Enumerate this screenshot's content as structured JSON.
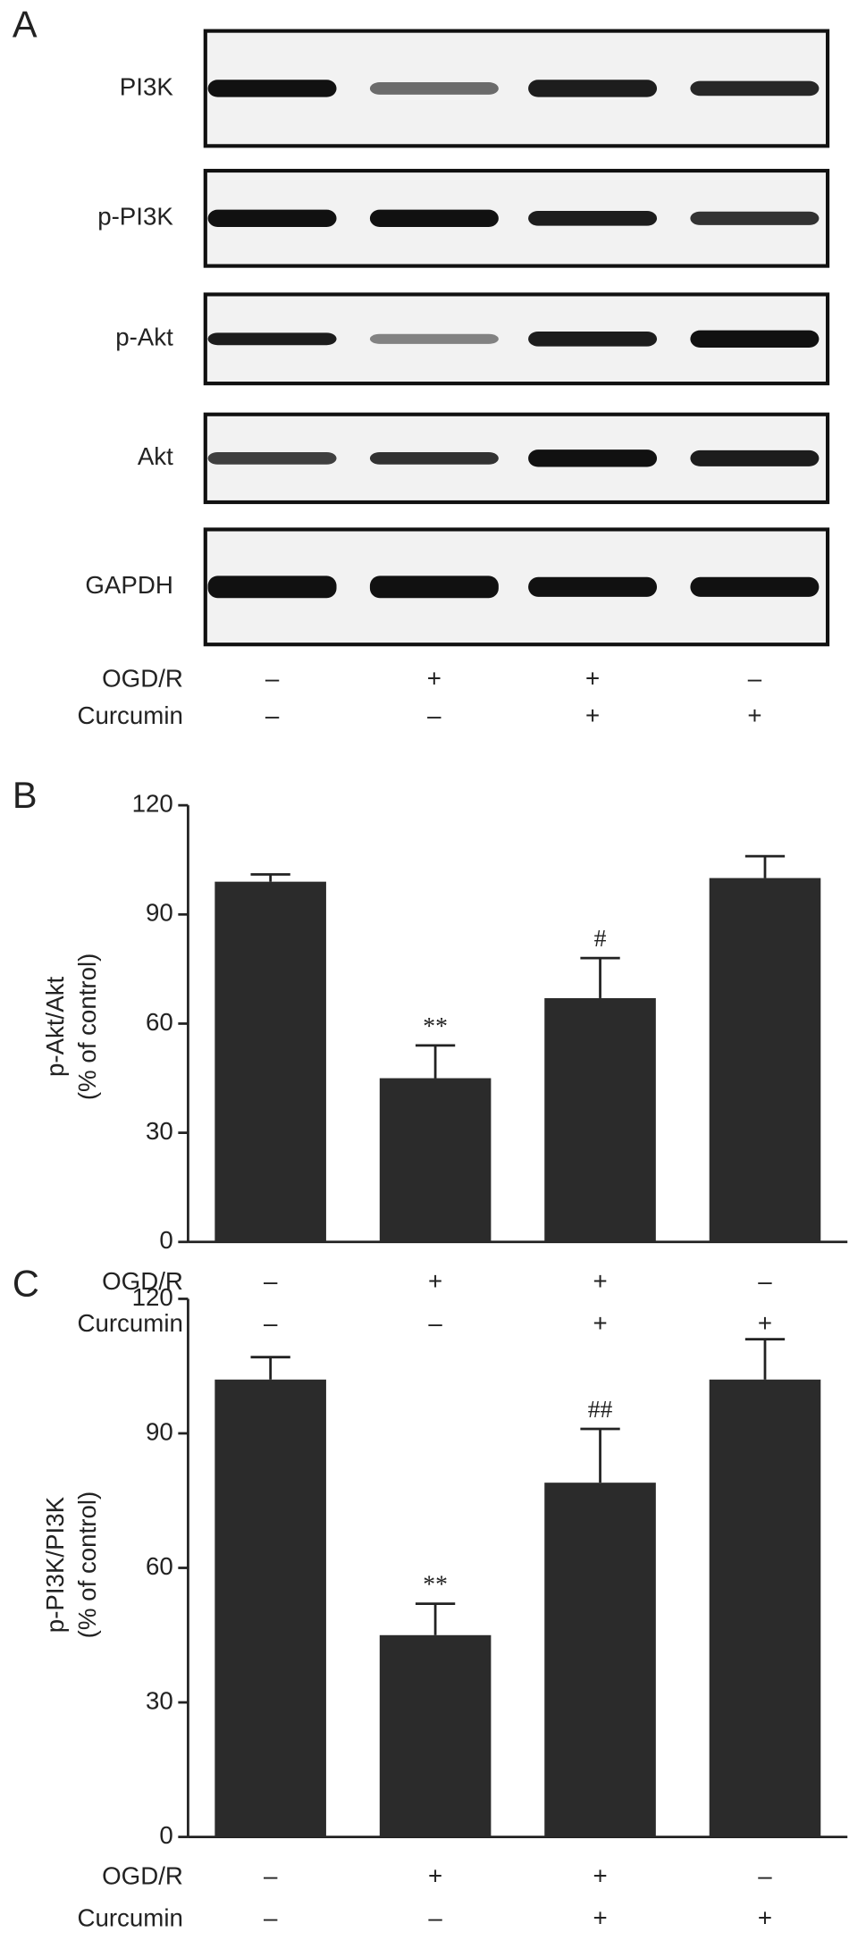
{
  "blot": {
    "panel_label": "A",
    "rows": [
      "PI3K",
      "p-PI3K",
      "p-Akt",
      "Akt",
      "GAPDH"
    ],
    "conditions": [
      {
        "name": "OGD/R",
        "values": [
          "–",
          "+",
          "+",
          "–"
        ]
      },
      {
        "name": "Curcumin",
        "values": [
          "–",
          "–",
          "+",
          "+"
        ]
      }
    ]
  },
  "chart_data": [
    {
      "type": "bar",
      "panel_label": "B",
      "y_label": [
        "p-Akt/Akt",
        "(% of control)"
      ],
      "values": [
        99,
        45,
        67,
        100
      ],
      "errors": [
        2,
        9,
        11,
        6
      ],
      "value_annotations": [
        null,
        "**",
        "#",
        null
      ],
      "color": "#2b2b2b",
      "ylim": [
        0,
        120
      ],
      "yticks": [
        0,
        30,
        60,
        90,
        120
      ],
      "conditions": [
        {
          "name": "OGD/R",
          "values": [
            "–",
            "+",
            "+",
            "–"
          ]
        },
        {
          "name": "Curcumin",
          "values": [
            "–",
            "–",
            "+",
            "+"
          ]
        }
      ]
    },
    {
      "type": "bar",
      "panel_label": "C",
      "y_label": [
        "p-PI3K/PI3K",
        "(% of control)"
      ],
      "values": [
        102,
        45,
        79,
        102
      ],
      "errors": [
        5,
        7,
        12,
        9
      ],
      "value_annotations": [
        null,
        "**",
        "##",
        null
      ],
      "color": "#2b2b2b",
      "ylim": [
        0,
        120
      ],
      "yticks": [
        0,
        30,
        60,
        90,
        120
      ],
      "conditions": [
        {
          "name": "OGD/R",
          "values": [
            "–",
            "+",
            "+",
            "–"
          ]
        },
        {
          "name": "Curcumin",
          "values": [
            "–",
            "–",
            "+",
            "+"
          ]
        }
      ]
    }
  ]
}
